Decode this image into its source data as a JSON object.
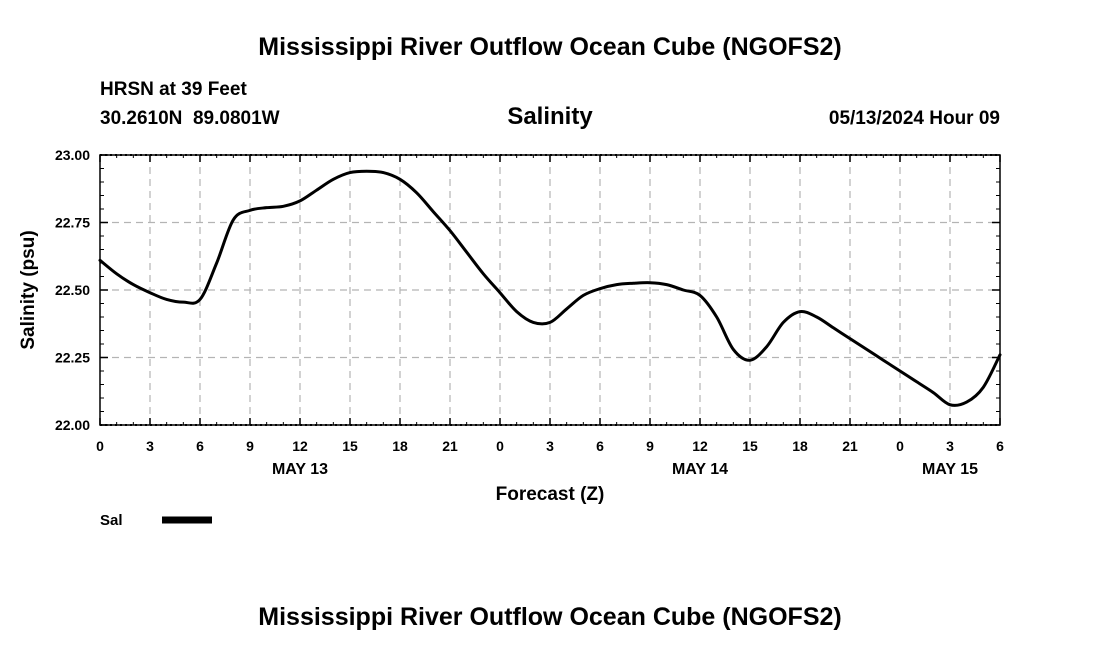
{
  "chart_data": {
    "type": "line",
    "title": "Mississippi River Outflow Ocean Cube (NGOFS2)",
    "footer_title": "Mississippi River Outflow Ocean Cube (NGOFS2)",
    "station": "HRSN at 39 Feet",
    "coordinates": "30.2610N  89.0801W",
    "subtitle": "Salinity",
    "datetime": "05/13/2024 Hour 09",
    "xlabel": "Forecast (Z)",
    "ylabel": "Salinity (psu)",
    "xlim": [
      0,
      54
    ],
    "ylim": [
      22.0,
      23.0
    ],
    "x_tick_values": [
      0,
      3,
      6,
      9,
      12,
      15,
      18,
      21,
      24,
      27,
      30,
      33,
      36,
      39,
      42,
      45,
      48,
      51,
      54
    ],
    "x_tick_labels": [
      "0",
      "3",
      "6",
      "9",
      "12",
      "15",
      "18",
      "21",
      "0",
      "3",
      "6",
      "9",
      "12",
      "15",
      "18",
      "21",
      "0",
      "3",
      "6"
    ],
    "y_tick_values": [
      22.0,
      22.25,
      22.5,
      22.75,
      23.0
    ],
    "y_tick_labels": [
      "22.00",
      "22.25",
      "22.50",
      "22.75",
      "23.00"
    ],
    "day_labels": [
      {
        "label": "MAY 13",
        "x": 12
      },
      {
        "label": "MAY 14",
        "x": 36
      },
      {
        "label": "MAY 15",
        "x": 51
      }
    ],
    "grid": true,
    "series": [
      {
        "name": "Sal",
        "color": "#000000",
        "x": [
          0,
          1,
          2,
          3,
          4,
          5,
          6,
          7,
          8,
          9,
          10,
          11,
          12,
          13,
          14,
          15,
          16,
          17,
          18,
          19,
          20,
          21,
          22,
          23,
          24,
          25,
          26,
          27,
          28,
          29,
          30,
          31,
          32,
          33,
          34,
          35,
          36,
          37,
          38,
          39,
          40,
          41,
          42,
          43,
          44,
          45,
          46,
          47,
          48,
          49,
          50,
          51,
          52,
          53,
          54
        ],
        "values": [
          22.61,
          22.56,
          22.52,
          22.49,
          22.465,
          22.455,
          22.465,
          22.6,
          22.76,
          22.795,
          22.805,
          22.81,
          22.83,
          22.87,
          22.91,
          22.935,
          22.94,
          22.935,
          22.91,
          22.86,
          22.79,
          22.72,
          22.64,
          22.56,
          22.49,
          22.42,
          22.38,
          22.38,
          22.43,
          22.48,
          22.505,
          22.52,
          22.525,
          22.527,
          22.52,
          22.5,
          22.48,
          22.4,
          22.28,
          22.24,
          22.29,
          22.38,
          22.42,
          22.4,
          22.36,
          22.32,
          22.28,
          22.24,
          22.2,
          22.16,
          22.12,
          22.075,
          22.085,
          22.14,
          22.26
        ]
      }
    ],
    "legend": [
      {
        "label": "Sal",
        "position": "bottom-left"
      }
    ]
  }
}
